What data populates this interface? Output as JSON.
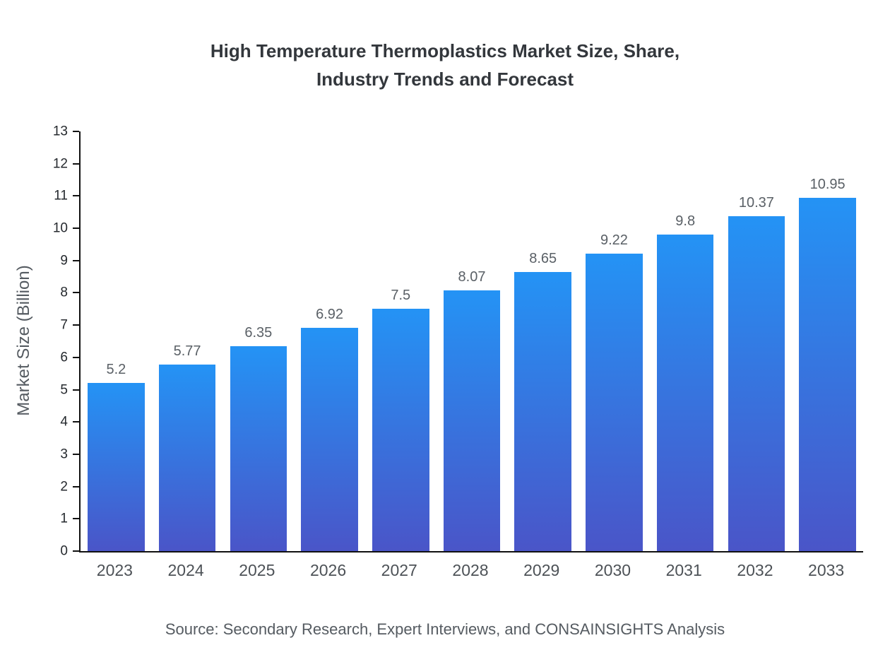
{
  "chart_data": {
    "type": "bar",
    "title": "High Temperature Thermoplastics Market Size, Share,\nIndustry Trends and Forecast",
    "categories": [
      "2023",
      "2024",
      "2025",
      "2026",
      "2027",
      "2028",
      "2029",
      "2030",
      "2031",
      "2032",
      "2033"
    ],
    "values": [
      5.2,
      5.77,
      6.35,
      6.92,
      7.5,
      8.07,
      8.65,
      9.22,
      9.8,
      10.37,
      10.95
    ],
    "xlabel": "",
    "ylabel": "Market Size (Billion)",
    "ylim": [
      0,
      13
    ],
    "ytick_step": 1,
    "grid": false,
    "legend": "none",
    "bar_color_top": "#2493f5",
    "bar_color_bottom": "#4a55c8",
    "value_label_color": "#5a6066",
    "axis_color": "#111111"
  },
  "footer": {
    "source": "Source: Secondary Research, Expert Interviews, and CONSAINSIGHTS Analysis"
  }
}
